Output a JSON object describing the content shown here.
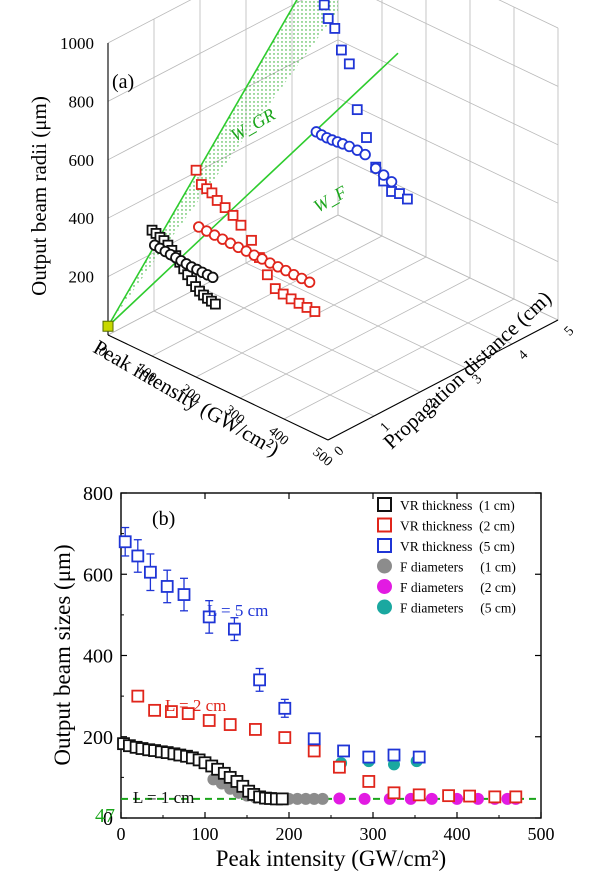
{
  "chart_data": [
    {
      "type": "scatter",
      "panel_label": "(a)",
      "projection": "3d",
      "zlabel": "Output beam radii (μm)",
      "xlabel": "Peak intensity (GW/cm²)",
      "ylabel": "Propagation distance (cm)",
      "zlim": [
        0,
        1000
      ],
      "xlim": [
        0,
        500
      ],
      "ylim": [
        0,
        5
      ],
      "z_ticks": [
        "200",
        "400",
        "600",
        "800",
        "1000"
      ],
      "x_ticks": [
        "0",
        "100",
        "200",
        "300",
        "400",
        "500"
      ],
      "y_ticks": [
        "0",
        "1",
        "2",
        "3",
        "4",
        "5"
      ],
      "annotations": [
        "W_GR",
        "W_F"
      ],
      "series": [
        {
          "marker": "square",
          "color": "#111111",
          "depth": 1,
          "x": [
            10,
            25,
            40,
            55,
            70,
            85,
            100,
            115,
            130,
            145,
            160,
            175,
            190,
            205,
            220,
            235,
            250
          ],
          "y": [
            182,
            178,
            172,
            168,
            160,
            150,
            140,
            126,
            112,
            100,
            88,
            76,
            68,
            62,
            58,
            55,
            52
          ]
        },
        {
          "marker": "circle",
          "color": "#111111",
          "depth": 1,
          "x": [
            20,
            40,
            60,
            80,
            100,
            120,
            140,
            160,
            180,
            200,
            220,
            240
          ],
          "y": [
            62,
            60,
            58,
            56,
            54,
            52,
            50,
            48,
            48,
            47,
            47,
            47
          ]
        },
        {
          "marker": "square",
          "color": "#e0251b",
          "depth": 2,
          "x": [
            20,
            40,
            60,
            80,
            100,
            130,
            160,
            190,
            230,
            260,
            290,
            320,
            350,
            380,
            410,
            440,
            470
          ],
          "y": [
            300,
            265,
            260,
            255,
            240,
            230,
            218,
            200,
            170,
            130,
            90,
            60,
            55,
            52,
            50,
            49,
            48
          ]
        },
        {
          "marker": "circle",
          "color": "#e0251b",
          "depth": 2,
          "x": [
            30,
            60,
            90,
            120,
            150,
            180,
            210,
            240,
            270,
            300,
            330,
            360,
            390,
            420,
            450
          ],
          "y": [
            55,
            54,
            53,
            52,
            51,
            50,
            50,
            49,
            49,
            48,
            48,
            48,
            47,
            47,
            47
          ]
        },
        {
          "marker": "square",
          "color": "#1f35d6",
          "depth": 5,
          "x": [
            5,
            20,
            35,
            50,
            75,
            100,
            130,
            160,
            195,
            230,
            260,
            290,
            320,
            350
          ],
          "y": [
            690,
            640,
            605,
            570,
            550,
            495,
            465,
            340,
            270,
            195,
            165,
            145,
            150,
            145
          ]
        },
        {
          "marker": "circle",
          "color": "#1f35d6",
          "depth": 5,
          "x": [
            5,
            25,
            45,
            65,
            85,
            105,
            130,
            160,
            190,
            230,
            260,
            290
          ],
          "y": [
            148,
            146,
            145,
            146,
            148,
            150,
            152,
            152,
            150,
            120,
            110,
            100
          ]
        }
      ]
    },
    {
      "type": "scatter",
      "panel_label": "(b)",
      "xlabel": "Peak intensity (GW/cm²)",
      "ylabel": "Output beam sizes (μm)",
      "xlim": [
        0,
        500
      ],
      "ylim": [
        0,
        800
      ],
      "x_ticks": [
        "0",
        "100",
        "200",
        "300",
        "400",
        "500"
      ],
      "y_ticks": [
        "0",
        "200",
        "400",
        "600",
        "800"
      ],
      "reference_line": {
        "y": 47,
        "label": "47",
        "color": "#1aa51a"
      },
      "annotations": [
        {
          "text": "L = 5 cm",
          "color": "#1f35d6"
        },
        {
          "text": "L = 2 cm",
          "color": "#e0251b"
        },
        {
          "text": "L = 1 cm",
          "color": "#111111"
        }
      ],
      "legend_position": "top-right",
      "series": [
        {
          "name": "VR thickness  (1 cm)",
          "marker": "open-square",
          "color": "#111111",
          "x": [
            3,
            10,
            18,
            25,
            33,
            40,
            48,
            55,
            63,
            70,
            78,
            85,
            93,
            100,
            108,
            115,
            123,
            130,
            138,
            145,
            152,
            158,
            165,
            172,
            178,
            185,
            192
          ],
          "y": [
            183,
            178,
            174,
            171,
            168,
            166,
            163,
            161,
            158,
            155,
            152,
            148,
            143,
            136,
            128,
            120,
            110,
            100,
            90,
            78,
            66,
            58,
            52,
            49,
            48,
            47,
            47
          ]
        },
        {
          "name": "VR thickness  (2 cm)",
          "marker": "open-square",
          "color": "#e0251b",
          "x": [
            20,
            40,
            60,
            80,
            105,
            130,
            160,
            195,
            230,
            260,
            295,
            325,
            355,
            390,
            415,
            445,
            470
          ],
          "y": [
            300,
            265,
            262,
            257,
            240,
            230,
            218,
            198,
            165,
            125,
            90,
            62,
            57,
            55,
            54,
            52,
            52
          ]
        },
        {
          "name": "VR thickness  (5 cm)",
          "marker": "open-square",
          "color": "#1f35d6",
          "x": [
            5,
            20,
            35,
            55,
            75,
            105,
            135,
            165,
            195,
            230,
            265,
            295,
            325,
            355
          ],
          "y": [
            680,
            645,
            605,
            570,
            550,
            495,
            465,
            340,
            270,
            195,
            165,
            150,
            155,
            150
          ],
          "yerr": [
            35,
            40,
            45,
            40,
            40,
            40,
            28,
            28,
            22,
            10,
            10,
            8,
            8,
            8
          ]
        },
        {
          "name": "F diameters     (1 cm)",
          "marker": "filled-circle",
          "color": "#8c8c8c",
          "x": [
            110,
            120,
            130,
            140,
            150,
            160,
            170,
            180,
            190,
            200,
            210,
            220,
            230,
            240
          ],
          "y": [
            95,
            85,
            72,
            62,
            55,
            50,
            48,
            47,
            47,
            47,
            47,
            47,
            47,
            47
          ]
        },
        {
          "name": "F diameters     (2 cm)",
          "marker": "filled-circle",
          "color": "#e21be2",
          "x": [
            260,
            290,
            320,
            345,
            370,
            400,
            425,
            445,
            460,
            470
          ],
          "y": [
            48,
            47,
            47,
            47,
            47,
            47,
            47,
            47,
            47,
            47
          ]
        },
        {
          "name": "F diameters     (5 cm)",
          "marker": "filled-circle",
          "color": "#1aa8a0",
          "x": [
            262,
            295,
            325,
            352
          ],
          "y": [
            135,
            140,
            132,
            140
          ]
        }
      ]
    }
  ]
}
